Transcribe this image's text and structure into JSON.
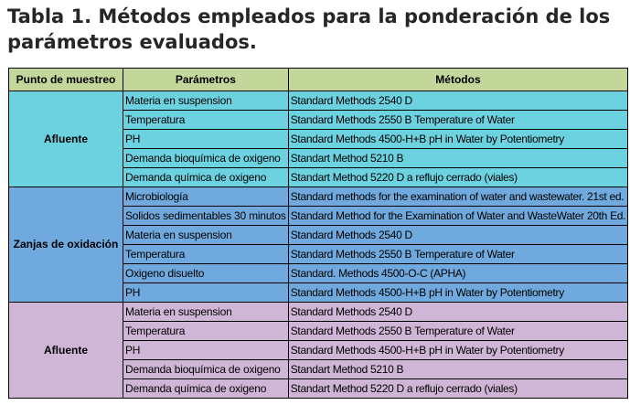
{
  "title": "Tabla 1. Métodos empleados para la ponderación de los parámetros evaluados.",
  "table": {
    "headers": [
      "Punto de muestreo",
      "Parámetros",
      "Métodos"
    ],
    "groups": [
      {
        "point": "Afluente",
        "color": "#6dd2e0",
        "rows": [
          {
            "param": "Materia en suspension",
            "method": "Standard Methods 2540 D"
          },
          {
            "param": "Temperatura",
            "method": "Standard Methods 2550 B Temperature of Water"
          },
          {
            "param": "PH",
            "method": "Standard Methods 4500-H+B pH in Water by Potentiometry"
          },
          {
            "param": "Demanda bioquímica de oxigeno",
            "method": "Standart Method 5210 B"
          },
          {
            "param": "Demanda química de oxigeno",
            "method": "Standart Method 5220 D a reflujo cerrado (viales)"
          }
        ]
      },
      {
        "point": "Zanjas de oxidación",
        "color": "#6fa9dd",
        "rows": [
          {
            "param": "Microbiología",
            "method": "Standard methods for the examination of water and wastewater. 21st ed."
          },
          {
            "param": "Solidos sedimentables 30 minutos",
            "method": "Standard Method for the Examination of Water and WasteWater 20th Ed."
          },
          {
            "param": "Materia en suspension",
            "method": "Standard Methods 2540 D"
          },
          {
            "param": "Temperatura",
            "method": "Standard Methods 2550 B Temperature of Water"
          },
          {
            "param": "Oxigeno disuelto",
            "method": "Standard. Methods 4500-O-C (APHA)"
          },
          {
            "param": "PH",
            "method": "Standard Methods 4500-H+B pH in Water by Potentiometry"
          }
        ]
      },
      {
        "point": "Afluente",
        "color": "#cfb5d6",
        "rows": [
          {
            "param": "Materia en suspension",
            "method": "Standard Methods 2540 D"
          },
          {
            "param": "Temperatura",
            "method": "Standard Methods 2550 B Temperature of Water"
          },
          {
            "param": "PH",
            "method": "Standard Methods 4500-H+B pH in Water by Potentiometry"
          },
          {
            "param": "Demanda bioquímica de oxigeno",
            "method": "Standart Method 5210 B"
          },
          {
            "param": "Demanda química de oxigeno",
            "method": "Standart Method 5220 D a reflujo cerrado (viales)"
          }
        ]
      }
    ]
  }
}
